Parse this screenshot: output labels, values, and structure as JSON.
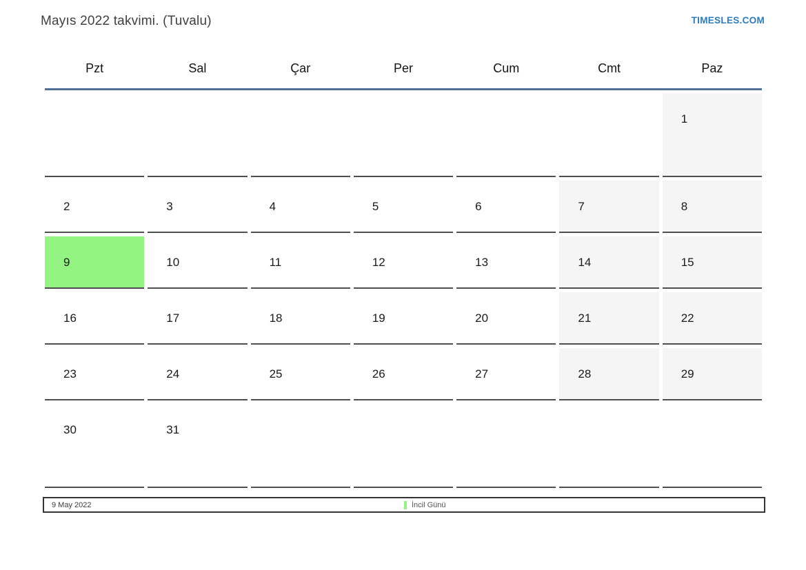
{
  "page": {
    "title": "Mayıs 2022 takvimi. (Tuvalu)",
    "site_link": "TIMESLES.COM"
  },
  "calendar": {
    "weekdays": [
      "Pzt",
      "Sal",
      "Çar",
      "Per",
      "Cum",
      "Cmt",
      "Paz"
    ],
    "weeks": [
      [
        "",
        "",
        "",
        "",
        "",
        "",
        "1"
      ],
      [
        "2",
        "3",
        "4",
        "5",
        "6",
        "7",
        "8"
      ],
      [
        "9",
        "10",
        "11",
        "12",
        "13",
        "14",
        "15"
      ],
      [
        "16",
        "17",
        "18",
        "19",
        "20",
        "21",
        "22"
      ],
      [
        "23",
        "24",
        "25",
        "26",
        "27",
        "28",
        "29"
      ],
      [
        "30",
        "31",
        "",
        "",
        "",
        "",
        ""
      ]
    ],
    "today": "9"
  },
  "legend": {
    "date": "9 May 2022",
    "marker_label": "İncil Günü"
  },
  "colors": {
    "accent_line": "#506f96",
    "today_bg": "#93f383",
    "weekend_bg": "#f5f5f5",
    "link_blue": "#2b7bbf",
    "border_gray": "#4e4e4e"
  }
}
